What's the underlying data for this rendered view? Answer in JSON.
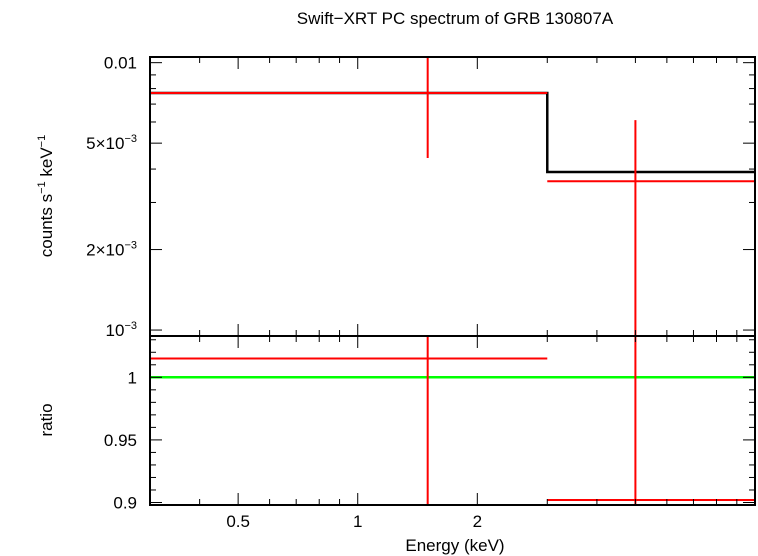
{
  "chart_data": {
    "type": "scatter",
    "title": "Swift−XRT PC spectrum of GRB 130807A",
    "xlabel": "Energy (keV)",
    "x_scale": "log",
    "xlim": [
      0.3,
      10
    ],
    "x_ticks": [
      {
        "value": 0.5,
        "label": "0.5"
      },
      {
        "value": 1,
        "label": "1"
      },
      {
        "value": 2,
        "label": "2"
      }
    ],
    "panels": [
      {
        "name": "spectrum",
        "ylabel_parts": [
          "counts s",
          "−1",
          " keV",
          "−1"
        ],
        "y_scale": "log",
        "ylim": [
          0.00095,
          0.0105
        ],
        "y_ticks": [
          {
            "value": 0.01,
            "label": "0.01"
          },
          {
            "value": 0.005,
            "label": "5×10",
            "sup": "−3"
          },
          {
            "value": 0.002,
            "label": "2×10",
            "sup": "−3"
          },
          {
            "value": 0.001,
            "label": "10",
            "sup": "−3"
          }
        ],
        "data": [
          {
            "x": 1.5,
            "x_low": 0.3,
            "x_high": 3.0,
            "y": 0.0077,
            "y_low": 0.0044,
            "y_high": 0.0105
          },
          {
            "x": 5.0,
            "x_low": 3.0,
            "x_high": 10.0,
            "y": 0.0036,
            "y_low": 0.00095,
            "y_high": 0.0061
          }
        ],
        "model": [
          {
            "x_low": 0.3,
            "x_high": 3.0,
            "y": 0.0077
          },
          {
            "x_low": 3.0,
            "x_high": 10.0,
            "y": 0.0039
          }
        ]
      },
      {
        "name": "ratio",
        "ylabel": "ratio",
        "y_scale": "linear",
        "ylim": [
          0.898,
          1.033
        ],
        "y_ticks": [
          {
            "value": 1,
            "label": "1"
          },
          {
            "value": 0.95,
            "label": "0.95"
          },
          {
            "value": 0.9,
            "label": "0.9"
          }
        ],
        "reference_line": 1,
        "data": [
          {
            "x": 1.5,
            "x_low": 0.3,
            "x_high": 3.0,
            "y": 1.015,
            "y_low": 0.898,
            "y_high": 1.033
          },
          {
            "x": 5.0,
            "x_low": 3.0,
            "x_high": 10.0,
            "y": 0.902,
            "y_low": 0.898,
            "y_high": 1.033
          }
        ]
      }
    ],
    "colors": {
      "data": "#ff0000",
      "model": "#000000",
      "reference": "#00ff00",
      "axes": "#000000"
    }
  }
}
